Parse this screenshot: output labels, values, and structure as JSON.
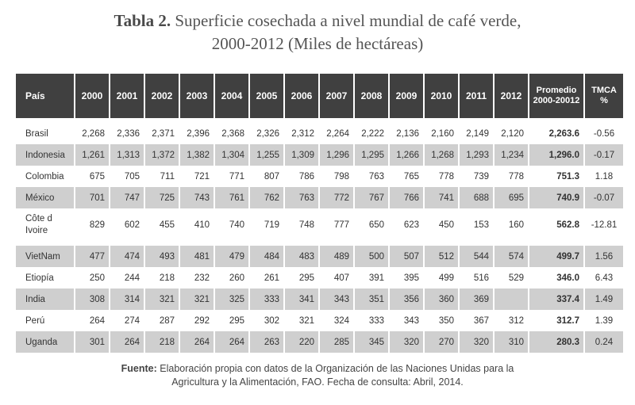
{
  "title": {
    "label": "Tabla 2.",
    "line1": "Superficie cosechada a nivel mundial de café verde,",
    "line2": "2000-2012 (Miles de hectáreas)"
  },
  "table": {
    "headers": {
      "country": "País",
      "years": [
        "2000",
        "2001",
        "2002",
        "2003",
        "2004",
        "2005",
        "2006",
        "2007",
        "2008",
        "2009",
        "2010",
        "2011",
        "2012"
      ],
      "promedio": "Promedio 2000-20012",
      "tmca": "TMCA %"
    },
    "rows": [
      {
        "country": "Brasil",
        "values": [
          "2,268",
          "2,336",
          "2,371",
          "2,396",
          "2,368",
          "2,326",
          "2,312",
          "2,264",
          "2,222",
          "2,136",
          "2,160",
          "2,149",
          "2,120"
        ],
        "promedio": "2,263.6",
        "tmca": "-0.56"
      },
      {
        "country": "Indonesia",
        "values": [
          "1,261",
          "1,313",
          "1,372",
          "1,382",
          "1,304",
          "1,255",
          "1,309",
          "1,296",
          "1,295",
          "1,266",
          "1,268",
          "1,293",
          "1,234"
        ],
        "promedio": "1,296.0",
        "tmca": "-0.17"
      },
      {
        "country": "Colombia",
        "values": [
          "675",
          "705",
          "711",
          "721",
          "771",
          "807",
          "786",
          "798",
          "763",
          "765",
          "778",
          "739",
          "778"
        ],
        "promedio": "751.3",
        "tmca": "1.18"
      },
      {
        "country": "México",
        "values": [
          "701",
          "747",
          "725",
          "743",
          "761",
          "762",
          "763",
          "772",
          "767",
          "766",
          "741",
          "688",
          "695"
        ],
        "promedio": "740.9",
        "tmca": "-0.07"
      },
      {
        "country": "Côte d Ivoire",
        "values": [
          "829",
          "602",
          "455",
          "410",
          "740",
          "719",
          "748",
          "777",
          "650",
          "623",
          "450",
          "153",
          "160"
        ],
        "promedio": "562.8",
        "tmca": "-12.81"
      },
      {
        "country": "VietNam",
        "values": [
          "477",
          "474",
          "493",
          "481",
          "479",
          "484",
          "483",
          "489",
          "500",
          "507",
          "512",
          "544",
          "574"
        ],
        "promedio": "499.7",
        "tmca": "1.56"
      },
      {
        "country": "Etiopía",
        "values": [
          "250",
          "244",
          "218",
          "232",
          "260",
          "261",
          "295",
          "407",
          "391",
          "395",
          "499",
          "516",
          "529"
        ],
        "promedio": "346.0",
        "tmca": "6.43"
      },
      {
        "country": "India",
        "values": [
          "308",
          "314",
          "321",
          "321",
          "325",
          "333",
          "341",
          "343",
          "351",
          "356",
          "360",
          "369",
          ""
        ],
        "promedio": "337.4",
        "tmca": "1.49"
      },
      {
        "country": "Perú",
        "values": [
          "264",
          "274",
          "287",
          "292",
          "295",
          "302",
          "321",
          "324",
          "333",
          "343",
          "350",
          "367",
          "312"
        ],
        "promedio": "312.7",
        "tmca": "1.39"
      },
      {
        "country": "Uganda",
        "values": [
          "301",
          "264",
          "218",
          "264",
          "264",
          "263",
          "220",
          "285",
          "345",
          "320",
          "270",
          "320",
          "310"
        ],
        "promedio": "280.3",
        "tmca": "0.24"
      }
    ]
  },
  "note": {
    "label": "Fuente:",
    "line1": "Elaboración propia con datos de la Organización de las Naciones Unidas para la",
    "line2": "Agricultura y la Alimentación, FAO. Fecha de consulta: Abril, 2014."
  }
}
